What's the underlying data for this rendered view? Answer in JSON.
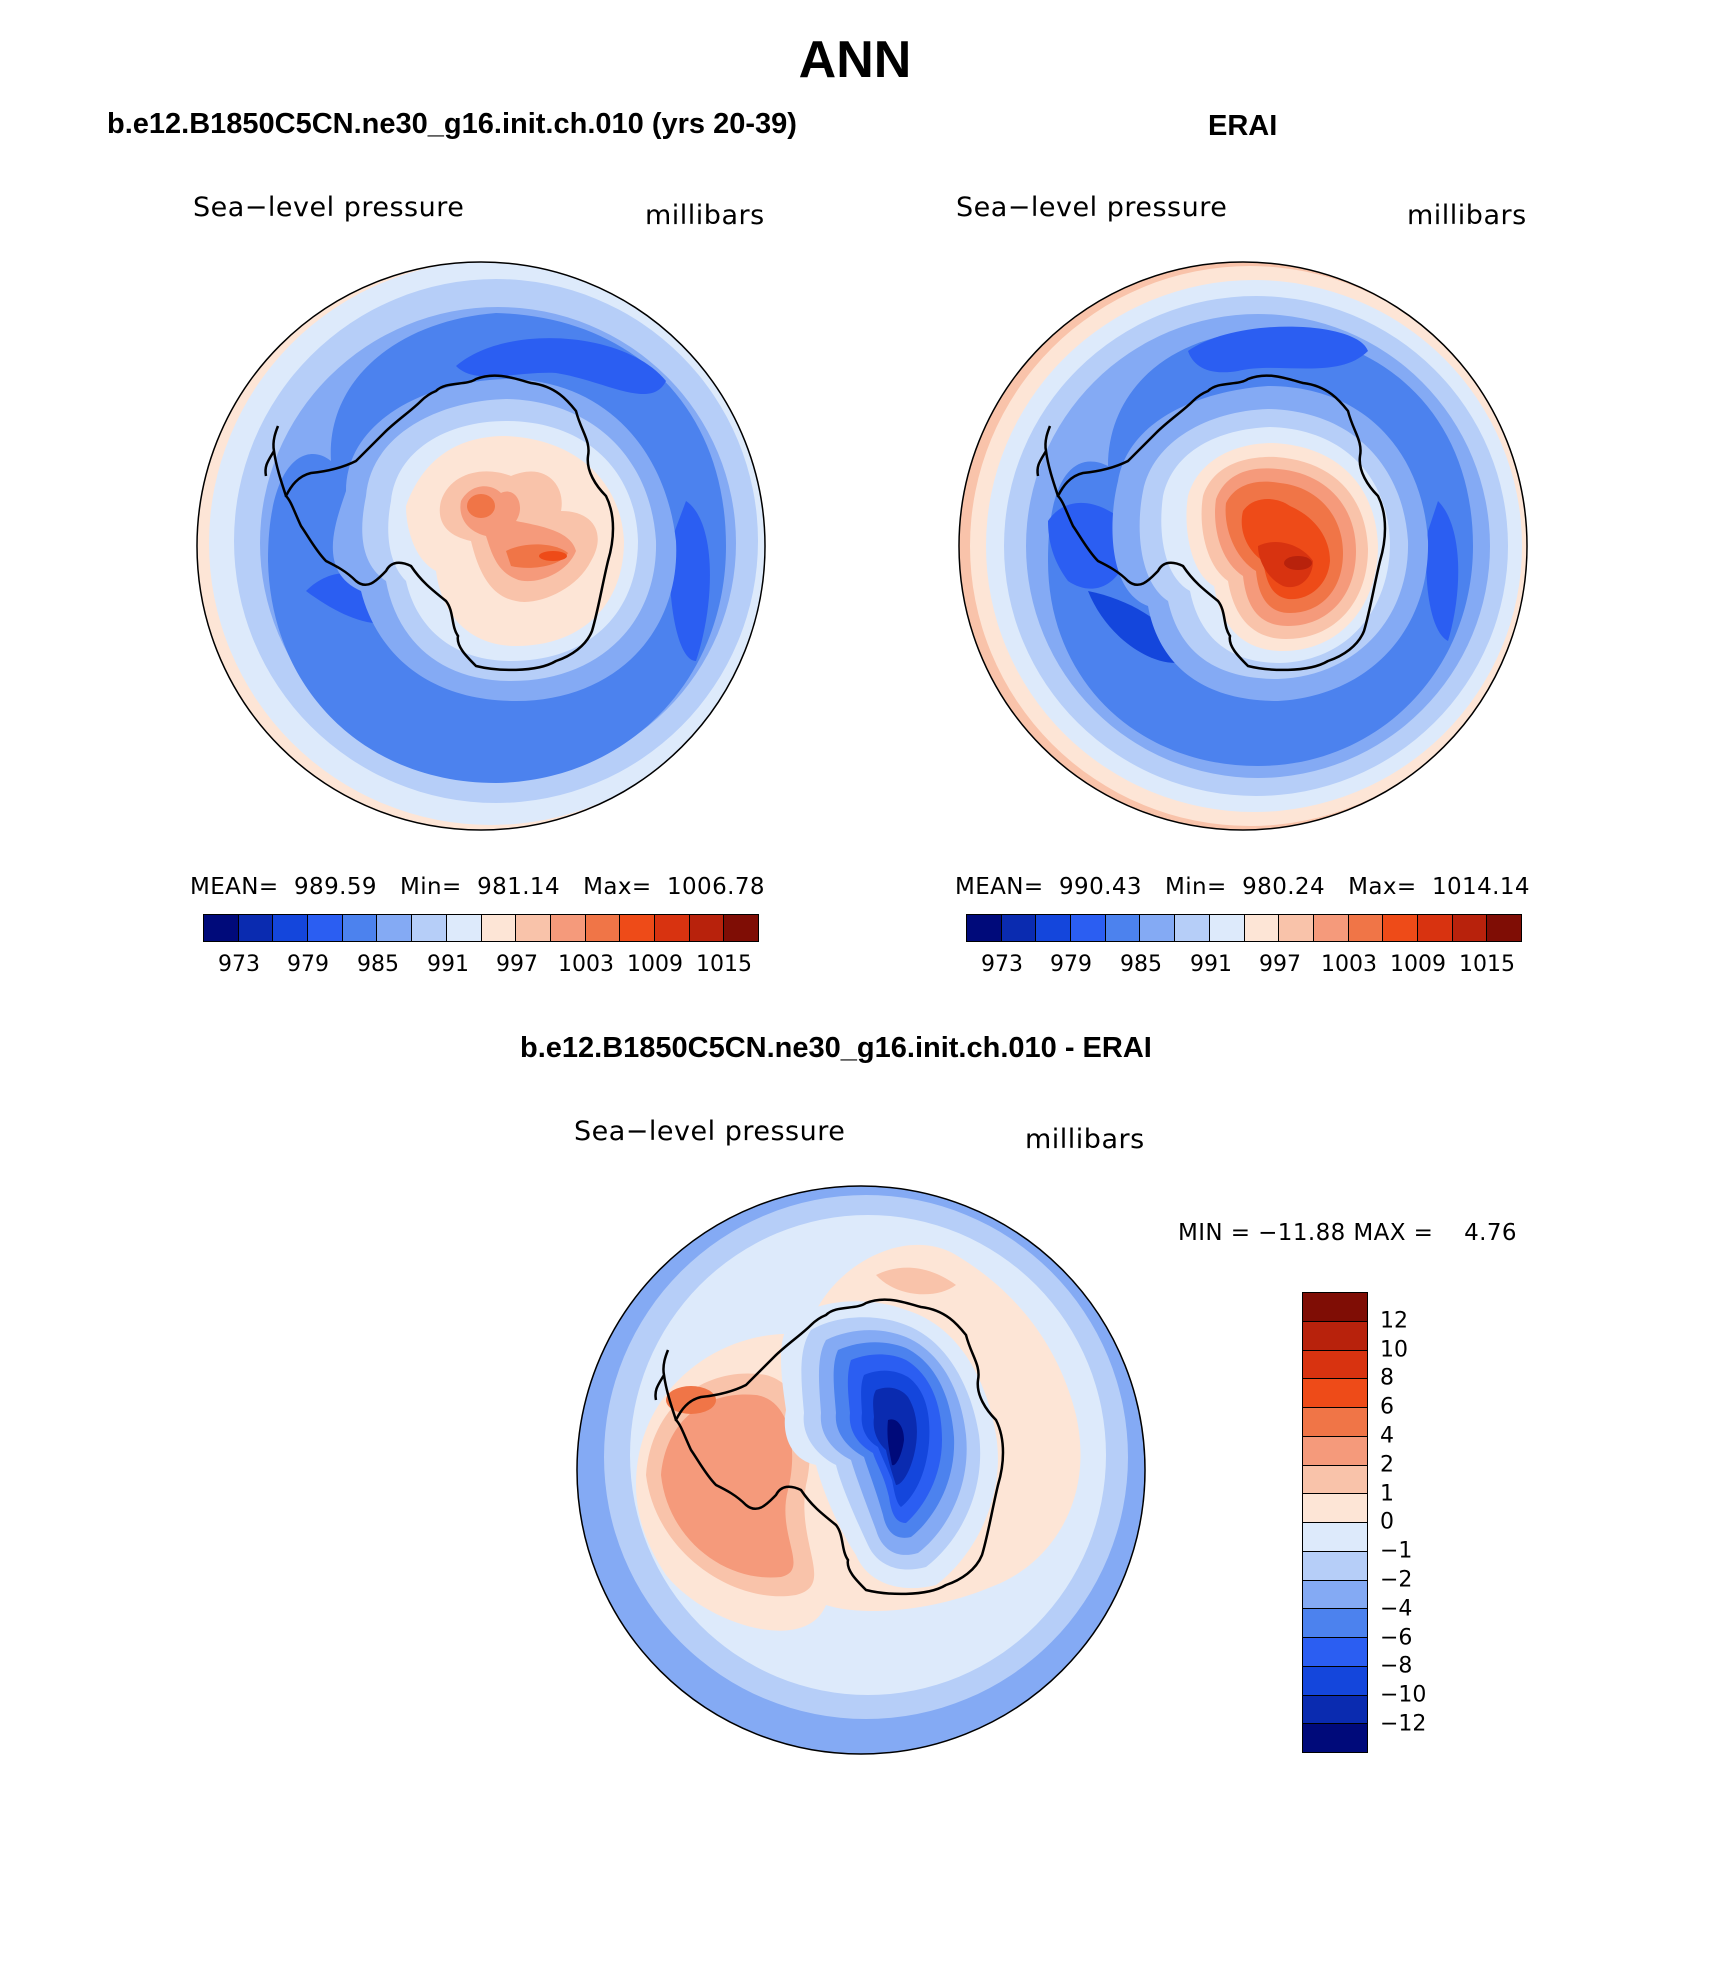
{
  "figure": {
    "title": "ANN"
  },
  "colors": {
    "full_scale": [
      "#000a7a",
      "#0a2bb0",
      "#1446dc",
      "#2b5ef2",
      "#4c82ee",
      "#84aaf4",
      "#b6cef8",
      "#ddeafb",
      "#fde5d6",
      "#f9c3aa",
      "#f59a7b",
      "#f07547",
      "#ee4b18",
      "#d83310",
      "#b8220c",
      "#7f0d05"
    ],
    "diff_scale": [
      "#000a7a",
      "#0a2bb0",
      "#1446dc",
      "#2b5ef2",
      "#4c82ee",
      "#84aaf4",
      "#b6cef8",
      "#ddeafb",
      "#fde5d6",
      "#f9c3aa",
      "#f59a7b",
      "#f07547",
      "#ee4b18",
      "#d83310",
      "#b8220c",
      "#7f0d05"
    ]
  },
  "panels": [
    {
      "title": "b.e12.B1850C5CN.ne30_g16.init.ch.010 (yrs 20-39)",
      "field": "Sea−level pressure",
      "units": "millibars",
      "stats": "MEAN=  989.59   Min=  981.14   Max=  1006.78",
      "colorbar_ticks": [
        "973",
        "979",
        "985",
        "991",
        "997",
        "1003",
        "1009",
        "1015"
      ]
    },
    {
      "title": "ERAI",
      "field": "Sea−level pressure",
      "units": "millibars",
      "stats": "MEAN=  990.43   Min=  980.24   Max=  1014.14",
      "colorbar_ticks": [
        "973",
        "979",
        "985",
        "991",
        "997",
        "1003",
        "1009",
        "1015"
      ]
    },
    {
      "title": "b.e12.B1850C5CN.ne30_g16.init.ch.010 - ERAI",
      "field": "Sea−level pressure",
      "units": "millibars",
      "stats": "MIN = −11.88 MAX =    4.76",
      "colorbar_ticks": [
        "12",
        "10",
        "8",
        "6",
        "4",
        "2",
        "1",
        "0",
        "−1",
        "−2",
        "−4",
        "−6",
        "−8",
        "−10",
        "−12"
      ]
    }
  ]
}
